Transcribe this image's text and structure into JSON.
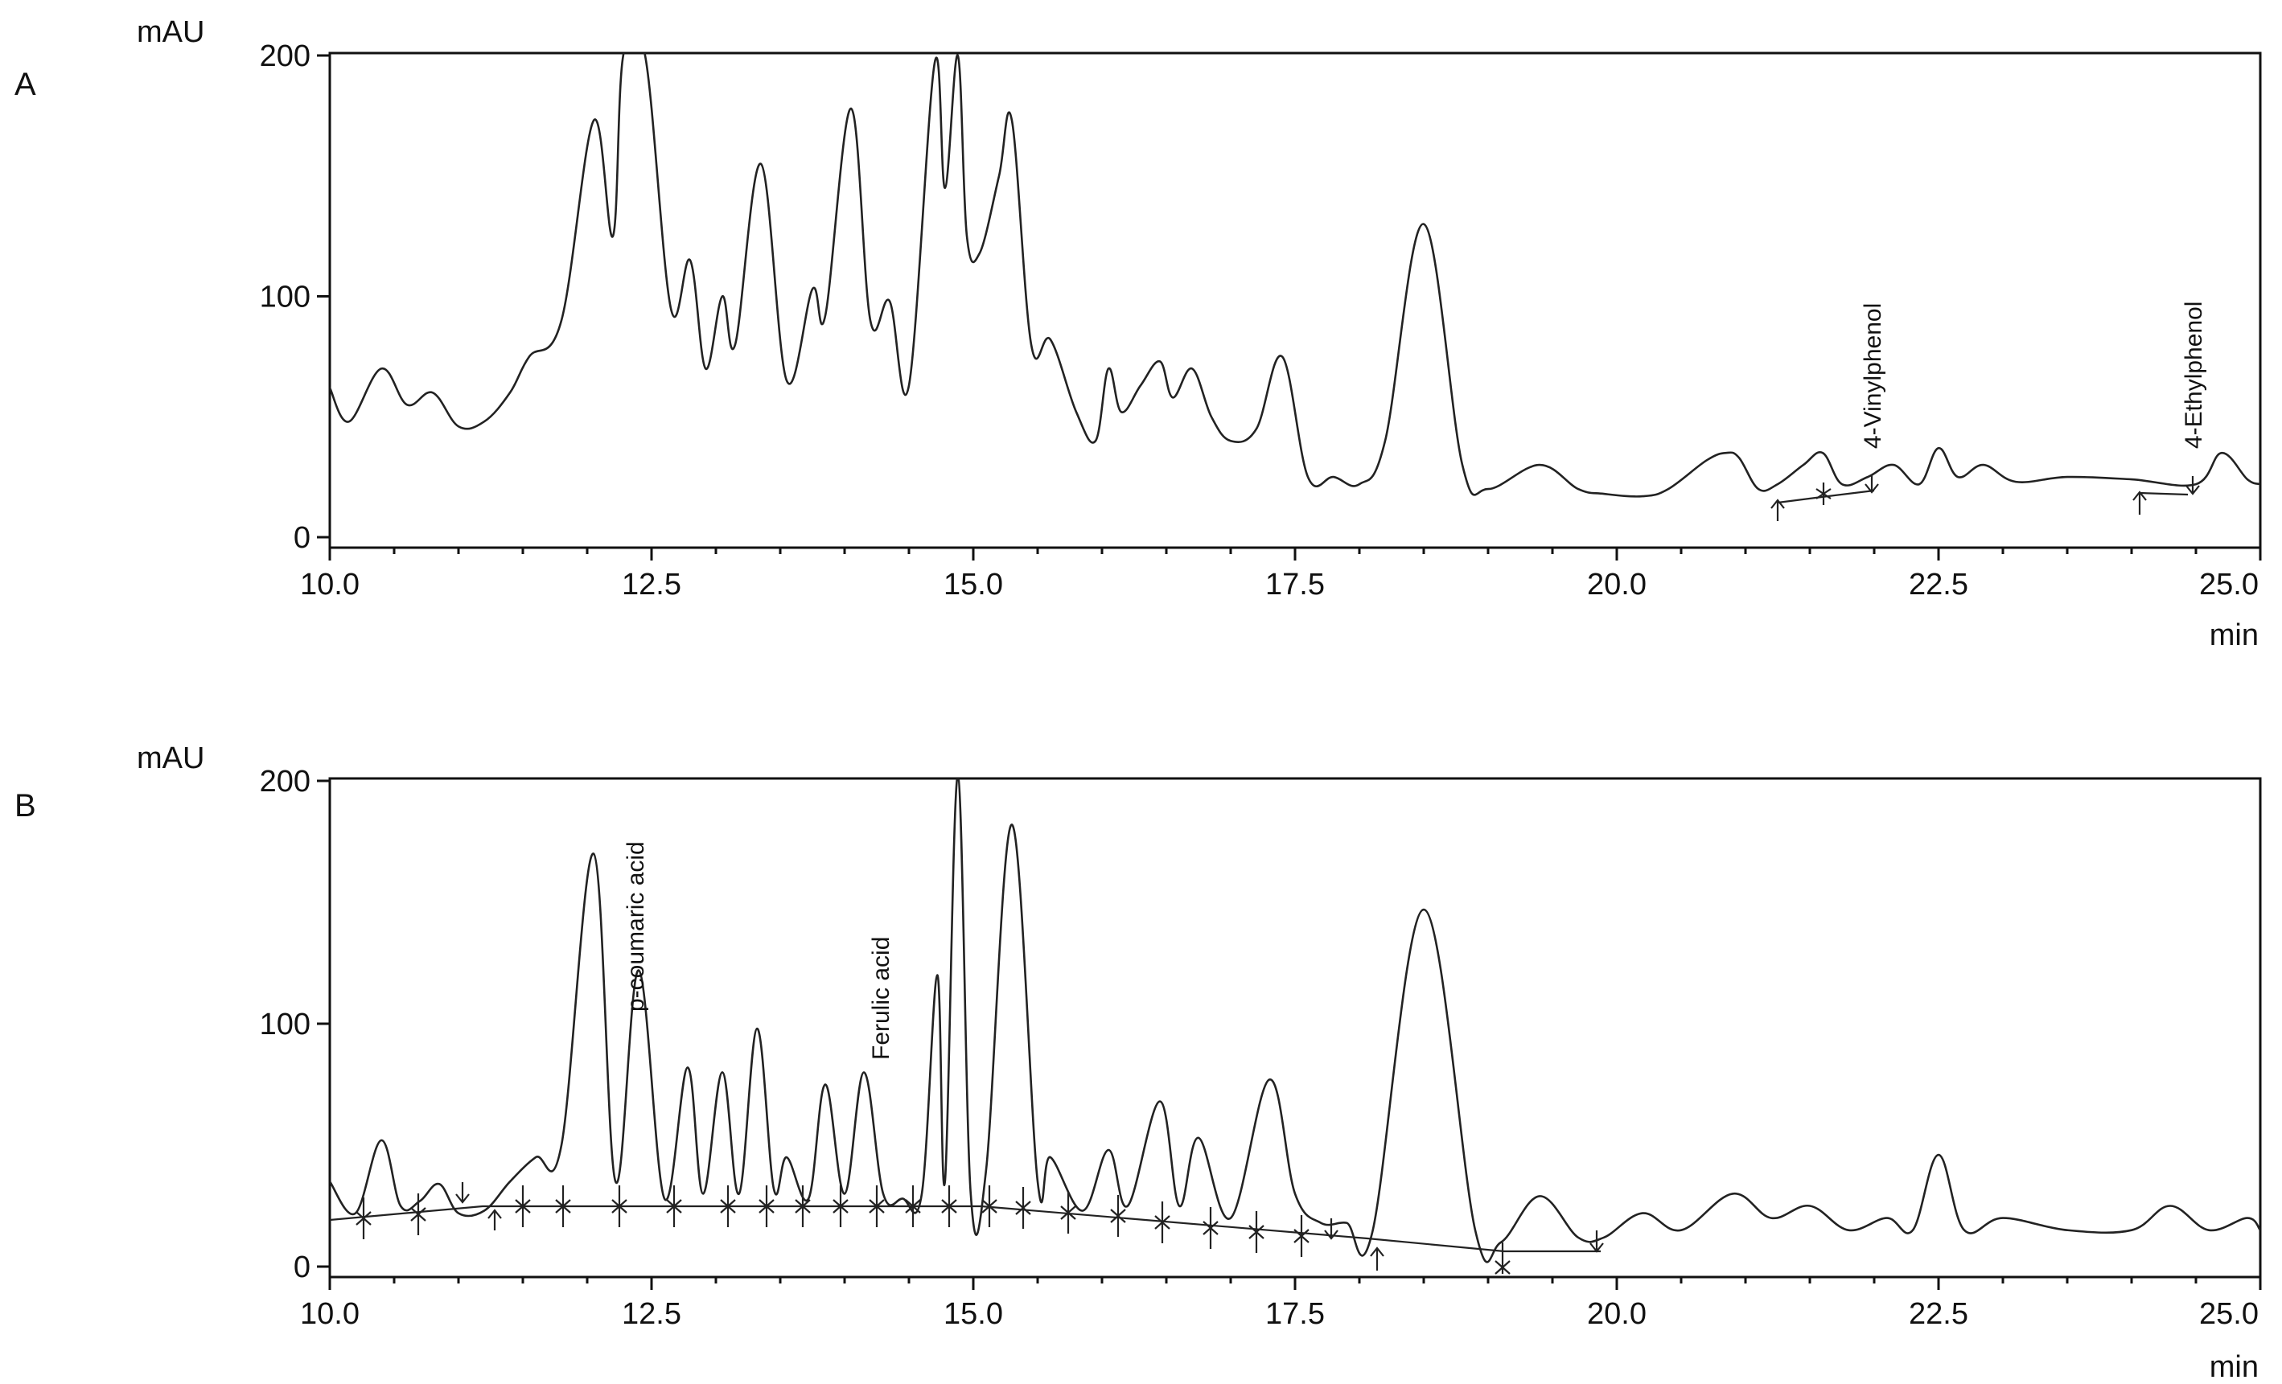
{
  "chart_data": [
    {
      "type": "line",
      "panel": "A",
      "ylabel": "mAU",
      "xlabel": "min",
      "xlim": [
        10.0,
        25.0
      ],
      "ylim": [
        0,
        200
      ],
      "x_ticks": [
        "10.0",
        "12.5",
        "15.0",
        "17.5",
        "20.0",
        "22.5",
        "25.0"
      ],
      "y_ticks": [
        "0",
        "100",
        "200"
      ],
      "series": [
        {
          "x": [
            10.0,
            10.15,
            10.4,
            10.6,
            10.8,
            11.0,
            11.2,
            11.4,
            11.55,
            11.8,
            12.05,
            12.2,
            12.28,
            12.45,
            12.65,
            12.8,
            12.92,
            13.05,
            13.15,
            13.35,
            13.55,
            13.75,
            13.85,
            14.05,
            14.2,
            14.35,
            14.5,
            14.7,
            14.78,
            14.88,
            14.95,
            15.05,
            15.2,
            15.3,
            15.45,
            15.6,
            15.8,
            15.95,
            16.05,
            16.15,
            16.3,
            16.45,
            16.55,
            16.7,
            16.85,
            17.0,
            17.2,
            17.4,
            17.6,
            17.8,
            18.0,
            18.2,
            18.5,
            18.8,
            19.0,
            19.4,
            19.7,
            19.9,
            20.2,
            20.4,
            20.7,
            20.85,
            20.95,
            21.1,
            21.25,
            21.45,
            21.6,
            21.75,
            21.95,
            22.15,
            22.35,
            22.5,
            22.65,
            22.85,
            23.1,
            23.5,
            24.0,
            24.5,
            24.7,
            24.9,
            25.0
          ],
          "y": [
            62,
            48,
            70,
            55,
            60,
            46,
            48,
            60,
            75,
            90,
            173,
            125,
            200,
            200,
            95,
            115,
            70,
            100,
            80,
            155,
            65,
            103,
            92,
            178,
            90,
            98,
            63,
            197,
            145,
            200,
            125,
            118,
            150,
            173,
            80,
            82,
            52,
            40,
            70,
            52,
            63,
            73,
            58,
            70,
            50,
            40,
            45,
            75,
            25,
            25,
            22,
            40,
            130,
            30,
            20,
            30,
            20,
            18,
            17,
            20,
            32,
            35,
            33,
            20,
            22,
            30,
            35,
            22,
            25,
            30,
            22,
            37,
            25,
            30,
            23,
            25,
            24,
            22,
            35,
            24,
            22
          ]
        }
      ],
      "annotations": [
        "4-Vinylphenol",
        "4-Ethylphenol"
      ]
    },
    {
      "type": "line",
      "panel": "B",
      "ylabel": "mAU",
      "xlabel": "min",
      "xlim": [
        10.0,
        25.0
      ],
      "ylim": [
        0,
        200
      ],
      "x_ticks": [
        "10.0",
        "12.5",
        "15.0",
        "17.5",
        "20.0",
        "22.5",
        "25.0"
      ],
      "y_ticks": [
        "0",
        "100",
        "200"
      ],
      "series": [
        {
          "x": [
            10.0,
            10.2,
            10.4,
            10.55,
            10.7,
            10.85,
            11.0,
            11.2,
            11.4,
            11.6,
            11.8,
            12.05,
            12.22,
            12.4,
            12.6,
            12.78,
            12.9,
            13.05,
            13.18,
            13.32,
            13.45,
            13.55,
            13.72,
            13.85,
            14.0,
            14.15,
            14.3,
            14.45,
            14.6,
            14.72,
            14.78,
            14.88,
            14.98,
            15.1,
            15.3,
            15.5,
            15.6,
            15.85,
            16.05,
            16.2,
            16.45,
            16.6,
            16.75,
            17.0,
            17.3,
            17.5,
            17.7,
            17.9,
            18.1,
            18.5,
            18.9,
            19.1,
            19.4,
            19.7,
            19.9,
            20.2,
            20.5,
            20.9,
            21.2,
            21.5,
            21.8,
            22.1,
            22.3,
            22.5,
            22.7,
            23.0,
            23.5,
            24.0,
            24.3,
            24.6,
            24.9,
            25.0
          ],
          "y": [
            35,
            22,
            52,
            25,
            27,
            34,
            22,
            23,
            35,
            45,
            50,
            170,
            35,
            122,
            28,
            82,
            30,
            80,
            30,
            98,
            32,
            45,
            28,
            75,
            30,
            80,
            30,
            28,
            30,
            120,
            35,
            210,
            30,
            40,
            182,
            35,
            45,
            23,
            48,
            25,
            68,
            25,
            53,
            20,
            77,
            30,
            18,
            18,
            14,
            147,
            15,
            10,
            29,
            12,
            12,
            22,
            15,
            30,
            20,
            25,
            15,
            20,
            15,
            46,
            15,
            20,
            15,
            15,
            25,
            15,
            20,
            15
          ]
        }
      ],
      "annotations": [
        "p-coumaric acid",
        "Ferulic acid"
      ]
    }
  ]
}
